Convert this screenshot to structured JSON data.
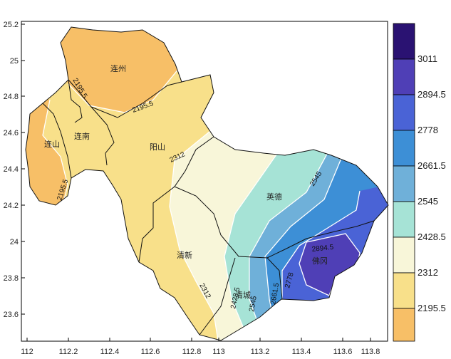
{
  "map": {
    "x_ticks": [
      "112",
      "112.2",
      "112.4",
      "112.6",
      "112.8",
      "113",
      "113.2",
      "113.4",
      "113.6",
      "113.8"
    ],
    "y_ticks": [
      "25.2",
      "25",
      "24.8",
      "24.6",
      "24.4",
      "24.2",
      "24",
      "23.8",
      "23.6"
    ],
    "cities": [
      "连州",
      "连南",
      "连山",
      "阳山",
      "英德",
      "清新",
      "清城",
      "佛冈"
    ],
    "contour_labels": [
      "2195.5",
      "2195.5",
      "2195.5",
      "2312",
      "2312",
      "2545",
      "2428.5",
      "2545",
      "2661.5",
      "2778",
      "2894.5"
    ],
    "colors": {
      "c1": "#f7bf67",
      "c2": "#f8e08a",
      "c3": "#f8f6d9",
      "c4": "#a6e3d6",
      "c5": "#6fb0d9",
      "c6": "#3d8fd6",
      "c7": "#4a63d6",
      "c8": "#4f3fb6",
      "c9": "#2a1272"
    }
  },
  "legend": {
    "labels": [
      "3011",
      "2894.5",
      "2778",
      "2661.5",
      "2545",
      "2428.5",
      "2312",
      "2195.5"
    ],
    "colors": [
      "#2a1272",
      "#4f3fb6",
      "#4a63d6",
      "#3d8fd6",
      "#6fb0d9",
      "#a6e3d6",
      "#f8f6d9",
      "#f8e08a",
      "#f7bf67"
    ]
  }
}
